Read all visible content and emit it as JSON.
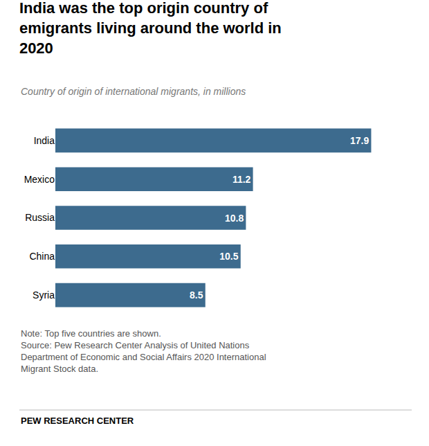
{
  "chart_data": {
    "type": "bar",
    "orientation": "horizontal",
    "title": "India was the top origin country of emigrants living around the world in 2020",
    "subtitle": "Country of origin of international migrants, in millions",
    "categories": [
      "India",
      "Mexico",
      "Russia",
      "China",
      "Syria"
    ],
    "values": [
      17.9,
      11.2,
      10.8,
      10.5,
      8.5
    ],
    "color": "#3d6b8e",
    "xlim": [
      0,
      20
    ],
    "data_labels": true,
    "grid": false,
    "tick_labels": "y",
    "annotations": [
      "Note: Top five countries are shown.",
      "Source: Pew Research Center Analysis of United Nations Department of Economic and Social Affairs 2020 International Migrant Stock data."
    ],
    "footer": "PEW RESEARCH CENTER"
  }
}
